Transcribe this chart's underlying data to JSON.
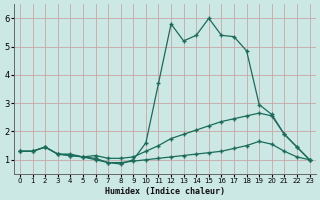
{
  "xlabel": "Humidex (Indice chaleur)",
  "bg_color": "#cce8e4",
  "grid_color": "#c8a8a8",
  "line_color": "#1a6b5a",
  "xlim": [
    -0.5,
    23.5
  ],
  "ylim": [
    0.5,
    6.5
  ],
  "xticks": [
    0,
    1,
    2,
    3,
    4,
    5,
    6,
    7,
    8,
    9,
    10,
    11,
    12,
    13,
    14,
    15,
    16,
    17,
    18,
    19,
    20,
    21,
    22,
    23
  ],
  "yticks": [
    1,
    2,
    3,
    4,
    5,
    6
  ],
  "line1_x": [
    0,
    1,
    2,
    3,
    4,
    5,
    6,
    7,
    8,
    9,
    10,
    11,
    12,
    13,
    14,
    15,
    16,
    17,
    18,
    19,
    20,
    21,
    22,
    23
  ],
  "line1_y": [
    1.3,
    1.3,
    1.45,
    1.2,
    1.2,
    1.1,
    1.05,
    0.9,
    0.85,
    1.0,
    1.6,
    3.7,
    5.8,
    5.2,
    5.4,
    6.0,
    5.4,
    5.35,
    4.85,
    2.95,
    2.6,
    1.9,
    1.45,
    1.0
  ],
  "line2_x": [
    0,
    1,
    2,
    3,
    4,
    5,
    6,
    7,
    8,
    9,
    10,
    11,
    12,
    13,
    14,
    15,
    16,
    17,
    18,
    19,
    20,
    21,
    22,
    23
  ],
  "line2_y": [
    1.3,
    1.3,
    1.45,
    1.2,
    1.15,
    1.1,
    1.15,
    1.05,
    1.05,
    1.1,
    1.3,
    1.5,
    1.75,
    1.9,
    2.05,
    2.2,
    2.35,
    2.45,
    2.55,
    2.65,
    2.55,
    1.9,
    1.45,
    1.0
  ],
  "line3_x": [
    0,
    1,
    2,
    3,
    4,
    5,
    6,
    7,
    8,
    9,
    10,
    11,
    12,
    13,
    14,
    15,
    16,
    17,
    18,
    19,
    20,
    21,
    22,
    23
  ],
  "line3_y": [
    1.3,
    1.3,
    1.45,
    1.2,
    1.15,
    1.1,
    1.0,
    0.9,
    0.9,
    0.95,
    1.0,
    1.05,
    1.1,
    1.15,
    1.2,
    1.25,
    1.3,
    1.4,
    1.5,
    1.65,
    1.55,
    1.3,
    1.1,
    1.0
  ]
}
